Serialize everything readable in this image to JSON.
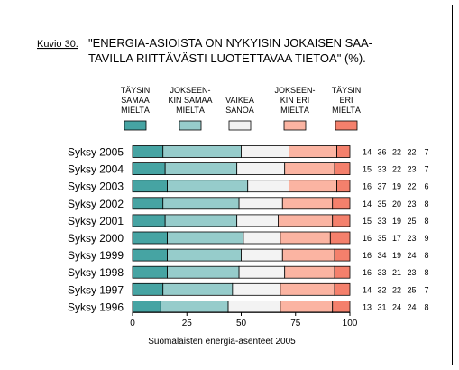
{
  "figure": {
    "label": "Kuvio 30.",
    "title_line1": "\"ENERGIA-ASIOISTA ON NYKYISIN JOKAISEN SAA-",
    "title_line2": "TAVILLA RIITTÄVÄSTI LUOTETTAVAA TIETOA\" (%).",
    "source": "Suomalaisten energia-asenteet 2005"
  },
  "chart_data": {
    "type": "bar",
    "stacked": true,
    "orientation": "horizontal",
    "title": "\"ENERGIA-ASIOISTA ON NYKYISIN JOKAISEN SAATAVILLA RIITTÄVÄSTI LUOTETTAVAA TIETOA\" (%).",
    "xlabel": "Suomalaisten energia-asenteet 2005",
    "xlim": [
      0,
      100
    ],
    "xticks": [
      0,
      25,
      50,
      75,
      100
    ],
    "grid": false,
    "legend_position": "top",
    "categories": [
      "Syksy 2005",
      "Syksy 2004",
      "Syksy 2003",
      "Syksy 2002",
      "Syksy 2001",
      "Syksy 2000",
      "Syksy 1999",
      "Syksy 1998",
      "Syksy 1997",
      "Syksy 1996"
    ],
    "series": [
      {
        "name": [
          "TÄYSIN",
          "SAMAA",
          "MIELTÄ"
        ],
        "color": "#46a4a3",
        "values": [
          14,
          15,
          16,
          14,
          15,
          16,
          16,
          16,
          14,
          13
        ]
      },
      {
        "name": [
          "JOKSEEN-",
          "KIN SAMAA",
          "MIELTÄ"
        ],
        "color": "#96cccb",
        "values": [
          36,
          33,
          37,
          35,
          33,
          35,
          34,
          33,
          32,
          31
        ]
      },
      {
        "name": [
          "VAIKEA",
          "SANOA"
        ],
        "color": "#f3f3f3",
        "values": [
          22,
          22,
          19,
          20,
          19,
          17,
          19,
          21,
          22,
          24
        ]
      },
      {
        "name": [
          "JOKSEEN-",
          "KIN ERI",
          "MIELTÄ"
        ],
        "color": "#fbb4a2",
        "values": [
          22,
          23,
          22,
          23,
          25,
          23,
          24,
          23,
          25,
          24
        ]
      },
      {
        "name": [
          "TÄYSIN",
          "ERI",
          "MIELTÄ"
        ],
        "color": "#f4806c",
        "values": [
          7,
          7,
          6,
          8,
          8,
          9,
          8,
          8,
          7,
          8
        ]
      }
    ]
  }
}
